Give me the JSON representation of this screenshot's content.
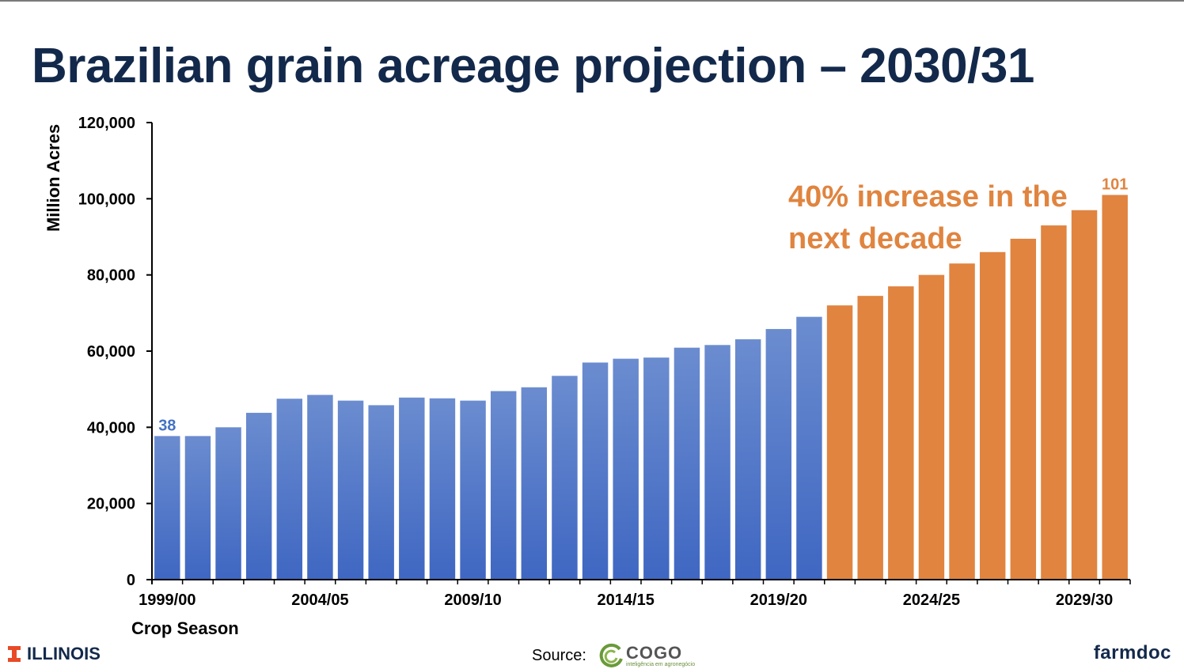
{
  "title": "Brazilian grain acreage projection – 2030/31",
  "chart_data": {
    "type": "bar",
    "ylabel": "Million Acres",
    "xlabel": "Crop Season",
    "ylim": [
      0,
      120000
    ],
    "yticks": [
      0,
      20000,
      40000,
      60000,
      80000,
      100000,
      120000
    ],
    "ytick_labels": [
      "0",
      "20,000",
      "40,000",
      "60,000",
      "80,000",
      "100,000",
      "120,000"
    ],
    "x_tick_labels": [
      {
        "index": 0,
        "label": "1999/00"
      },
      {
        "index": 5,
        "label": "2004/05"
      },
      {
        "index": 10,
        "label": "2009/10"
      },
      {
        "index": 15,
        "label": "2014/15"
      },
      {
        "index": 20,
        "label": "2019/20"
      },
      {
        "index": 25,
        "label": "2024/25"
      },
      {
        "index": 30,
        "label": "2029/30"
      }
    ],
    "series": [
      {
        "color": "#4472c4",
        "start_index": 0,
        "values": [
          37700,
          37700,
          40000,
          43800,
          47500,
          48500,
          47000,
          45800,
          47800,
          47600,
          47000,
          49500,
          50500,
          53500,
          57000,
          58000,
          58300,
          60900,
          61600,
          63100,
          65800,
          69000
        ]
      },
      {
        "color": "#e0843f",
        "start_index": 22,
        "values": [
          72000,
          74500,
          77000,
          80000,
          83000,
          86000,
          89500,
          93000,
          97000,
          101000
        ]
      }
    ],
    "data_labels": [
      {
        "index": 0,
        "text": "38",
        "color": "#4472c4"
      },
      {
        "index": 31,
        "text": "101",
        "color": "#e0843f"
      }
    ],
    "annotation": {
      "lines": [
        "40% increase in the",
        "next decade"
      ],
      "color": "#e0843f"
    },
    "grid": false
  },
  "footer": {
    "illinois_label": "ILLINOIS",
    "source_label": "Source:",
    "cogo_word": "COGO",
    "cogo_sub": "inteligência em agronegócio",
    "farmdoc_label": "farmdoc"
  },
  "colors": {
    "title": "#13294b",
    "historical": "#4472c4",
    "projected": "#e0843f",
    "illinois_orange": "#e84a27"
  }
}
